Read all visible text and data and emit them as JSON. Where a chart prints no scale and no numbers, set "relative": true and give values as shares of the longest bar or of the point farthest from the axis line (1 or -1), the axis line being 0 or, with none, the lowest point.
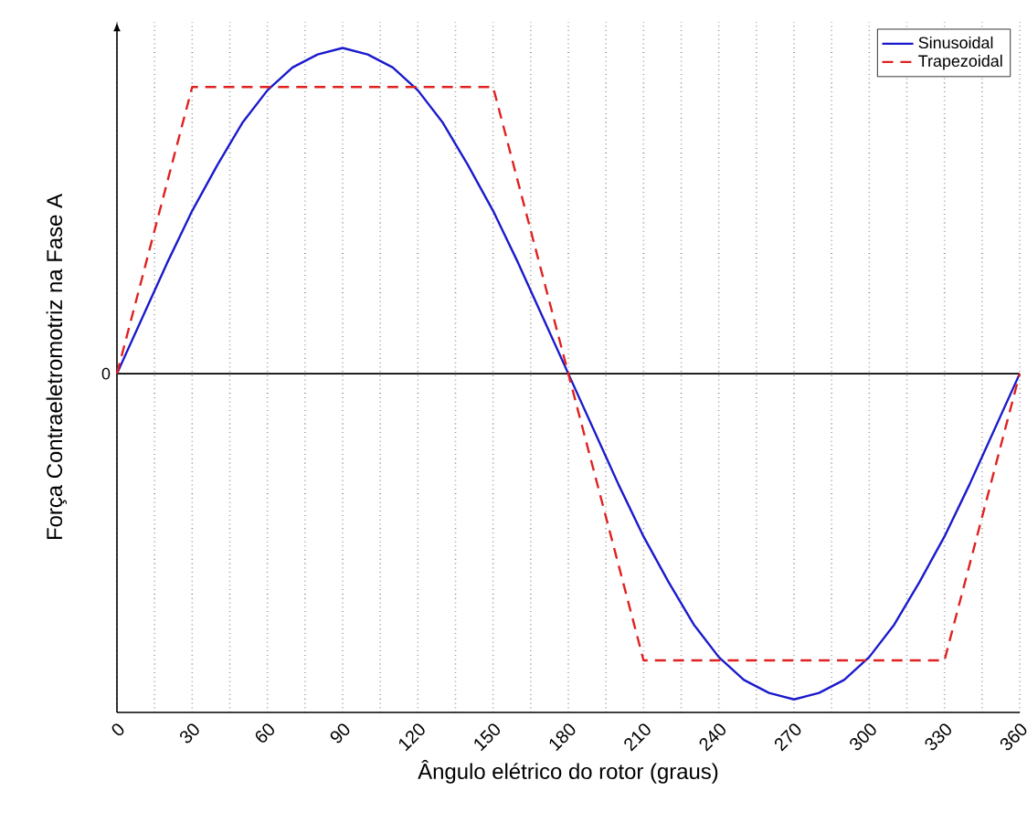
{
  "chart_data": {
    "type": "line",
    "relative": true,
    "xlabel": "Ângulo elétrico do rotor (graus)",
    "ylabel": "Força Contraeletromotriz na Fase A",
    "xlim": [
      0,
      360
    ],
    "xticks": [
      0,
      {
        "value": 15,
        "label": null
      },
      30,
      {
        "value": 45,
        "label": null
      },
      60,
      {
        "value": 75,
        "label": null
      },
      90,
      {
        "value": 105,
        "label": null
      },
      120,
      {
        "value": 135,
        "label": null
      },
      150,
      {
        "value": 165,
        "label": null
      },
      180,
      {
        "value": 195,
        "label": null
      },
      210,
      {
        "value": 225,
        "label": null
      },
      240,
      {
        "value": 255,
        "label": null
      },
      270,
      {
        "value": 285,
        "label": null
      },
      300,
      {
        "value": 315,
        "label": null
      },
      330,
      {
        "value": 345,
        "label": null
      },
      360
    ],
    "grid": "x",
    "legend": "top right",
    "marker": "none",
    "ref_lines": [
      {
        "axis": "y",
        "value": 0,
        "label": "0",
        "color": "#000000"
      }
    ],
    "series": [
      {
        "name": "Sinusoidal",
        "color": "#1a1acc",
        "line_style": "solid",
        "x": [
          0,
          10,
          20,
          30,
          40,
          50,
          60,
          70,
          80,
          90,
          100,
          110,
          120,
          130,
          140,
          150,
          160,
          170,
          180,
          190,
          200,
          210,
          220,
          230,
          240,
          250,
          260,
          270,
          280,
          290,
          300,
          310,
          320,
          330,
          340,
          350,
          360
        ],
        "values": [
          0,
          0.17,
          0.34,
          0.5,
          0.64,
          0.77,
          0.87,
          0.94,
          0.98,
          1,
          0.98,
          0.94,
          0.87,
          0.77,
          0.64,
          0.5,
          0.34,
          0.17,
          0,
          -0.17,
          -0.34,
          -0.5,
          -0.64,
          -0.77,
          -0.87,
          -0.94,
          -0.98,
          -1,
          -0.98,
          -0.94,
          -0.87,
          -0.77,
          -0.64,
          -0.5,
          -0.34,
          -0.17,
          0
        ]
      },
      {
        "name": "Trapezoidal",
        "color": "#e02020",
        "line_style": "dashed",
        "x": [
          0,
          30,
          150,
          180,
          210,
          330,
          360
        ],
        "values": [
          0,
          0.88,
          0.88,
          0,
          -0.88,
          -0.88,
          0
        ]
      }
    ]
  }
}
